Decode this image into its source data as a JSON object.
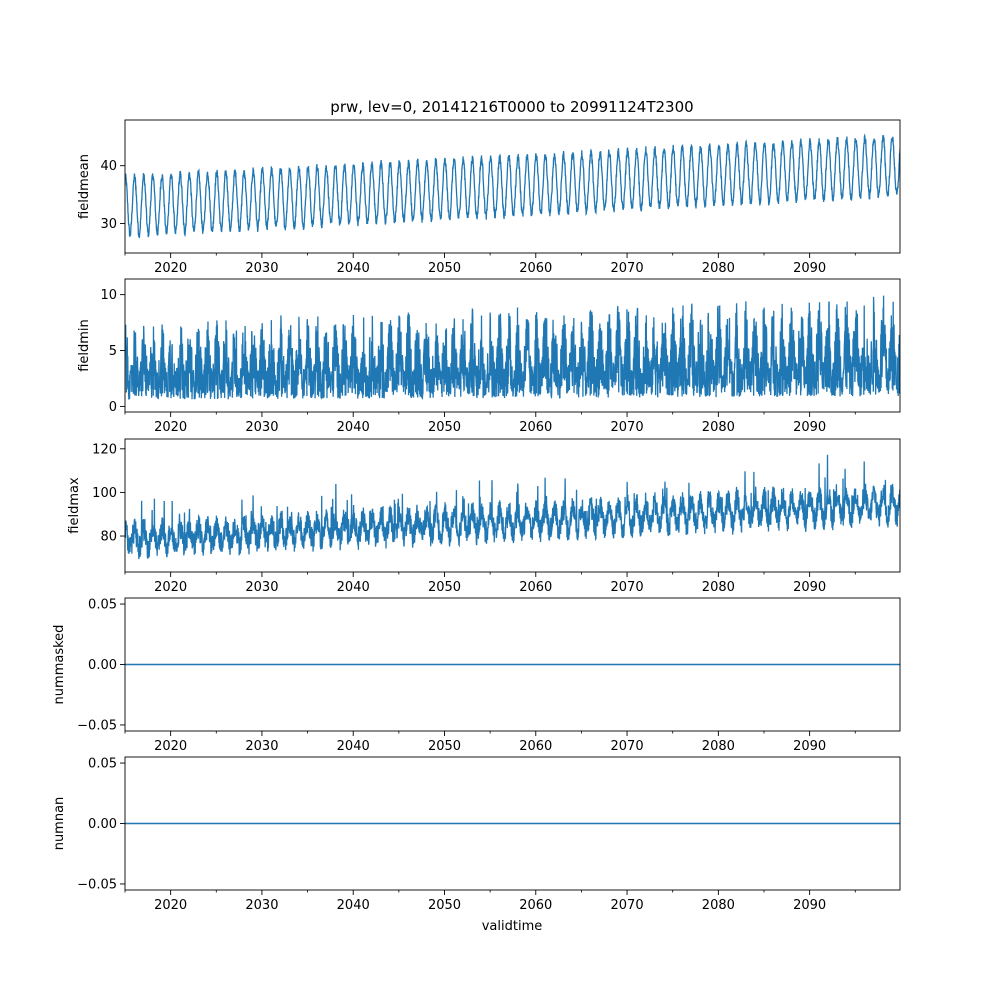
{
  "chart_data": {
    "type": "line",
    "title": "prw, lev=0, 20141216T0000 to 20991124T2300",
    "xlabel": "validtime",
    "x_range": [
      2015.0,
      2099.9
    ],
    "x_ticks": [
      2020,
      2030,
      2040,
      2050,
      2060,
      2070,
      2080,
      2090
    ],
    "line_color": "#1f77b4",
    "series": [
      {
        "name": "fieldmean",
        "ylabel": "fieldmean",
        "ylim": [
          24.9,
          47.9
        ],
        "yticks": [
          30,
          40
        ],
        "seasonal": {
          "start_low": 28,
          "start_high": 38,
          "end_low": 35,
          "end_high": 45
        }
      },
      {
        "name": "fieldmin",
        "ylabel": "fieldmin",
        "ylim": [
          -0.5,
          11.4
        ],
        "yticks": [
          0,
          5,
          10
        ],
        "seasonal": {
          "start_low": 0.6,
          "start_high": 7.8,
          "end_low": 0.9,
          "end_high": 10.2
        }
      },
      {
        "name": "fieldmax",
        "ylabel": "fieldmax",
        "ylim": [
          63.5,
          124.5
        ],
        "yticks": [
          80,
          100,
          120
        ],
        "seasonal": {
          "start_low": 70,
          "start_high": 88,
          "end_low": 83,
          "end_high": 108
        }
      },
      {
        "name": "nummasked",
        "ylabel": "nummasked",
        "ylim": [
          -0.055,
          0.055
        ],
        "yticks": [
          -0.05,
          0.0,
          0.05
        ],
        "ytick_labels": [
          "−0.05",
          "0.00",
          "0.05"
        ],
        "constant": 0
      },
      {
        "name": "numnan",
        "ylabel": "numnan",
        "ylim": [
          -0.055,
          0.055
        ],
        "yticks": [
          -0.05,
          0.0,
          0.05
        ],
        "ytick_labels": [
          "−0.05",
          "0.00",
          "0.05"
        ],
        "constant": 0
      }
    ]
  }
}
